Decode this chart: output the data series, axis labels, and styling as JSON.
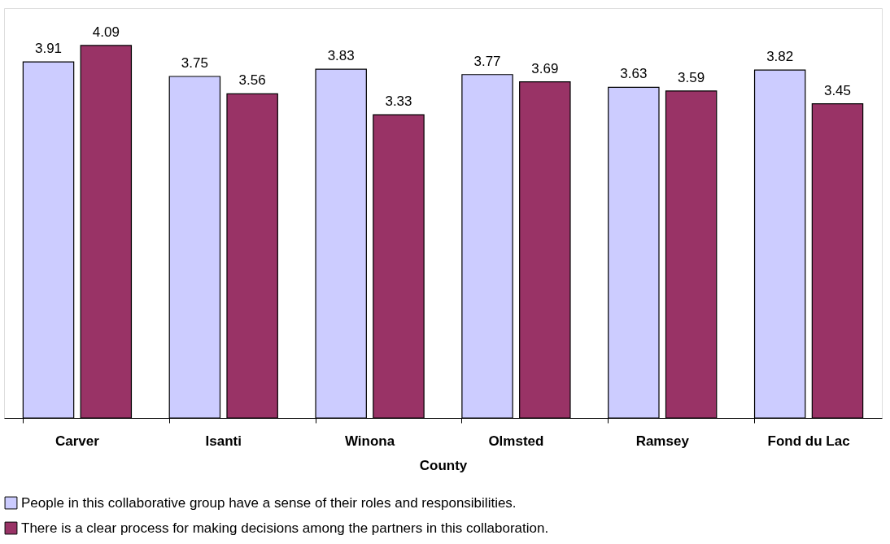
{
  "chart_data": {
    "type": "bar",
    "xlabel": "County",
    "categories": [
      "Carver",
      "Isanti",
      "Winona",
      "Olmsted",
      "Ramsey",
      "Fond du Lac"
    ],
    "series": [
      {
        "name": "People in this collaborative group have a sense of their roles and responsibilities.",
        "color": "#ccccff",
        "values": [
          3.91,
          3.75,
          3.83,
          3.77,
          3.63,
          3.82
        ]
      },
      {
        "name": "There is a clear process for making decisions among the partners in this collaboration.",
        "color": "#993366",
        "values": [
          4.09,
          3.56,
          3.33,
          3.69,
          3.59,
          3.45
        ]
      }
    ],
    "ylim": [
      0,
      4.5
    ],
    "tick_labels": "x",
    "data_labels": true,
    "legend": "bottom"
  }
}
